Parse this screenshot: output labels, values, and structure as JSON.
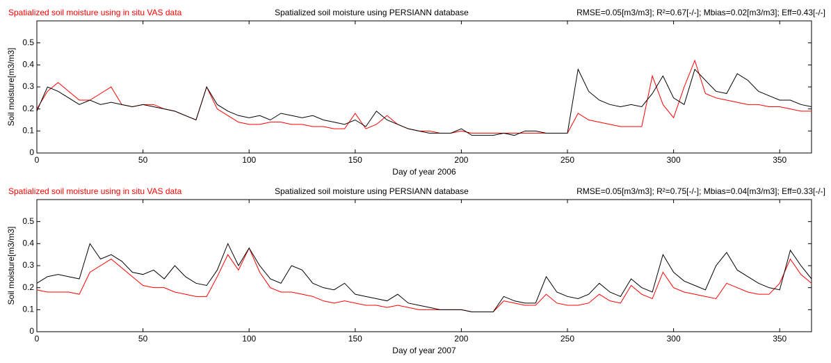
{
  "chart_data": [
    {
      "type": "line",
      "annotation": "RMSE=0.05[m3/m3]; R²=0.67[-/-]; Mbias=0.02[m3/m3]; Eff=0.43[-/-]",
      "x_label": "Day of year 2006",
      "y_label": "Soil moisture[m3/m3]",
      "xlim": [
        0,
        365
      ],
      "xticks": [
        0,
        50,
        100,
        150,
        200,
        250,
        300,
        350
      ],
      "ylim": [
        0,
        0.6
      ],
      "yticks": [
        0,
        0.1,
        0.2,
        0.3,
        0.4,
        0.5
      ],
      "x": [
        0,
        5,
        10,
        15,
        20,
        25,
        30,
        35,
        40,
        45,
        50,
        55,
        60,
        65,
        70,
        75,
        80,
        85,
        90,
        95,
        100,
        105,
        110,
        115,
        120,
        125,
        130,
        135,
        140,
        145,
        150,
        155,
        160,
        165,
        170,
        175,
        180,
        185,
        190,
        195,
        200,
        205,
        210,
        215,
        220,
        225,
        230,
        235,
        240,
        245,
        250,
        255,
        260,
        265,
        270,
        275,
        280,
        285,
        290,
        295,
        300,
        305,
        310,
        315,
        320,
        325,
        330,
        335,
        340,
        345,
        350,
        355,
        360,
        365
      ],
      "series": [
        {
          "name": "Spatialized soil moisture using in situ VAS data",
          "color": "#ff0000",
          "values": [
            0.2,
            0.28,
            0.32,
            0.28,
            0.24,
            0.24,
            0.27,
            0.3,
            0.22,
            0.21,
            0.22,
            0.22,
            0.2,
            0.19,
            0.17,
            0.15,
            0.3,
            0.2,
            0.17,
            0.14,
            0.13,
            0.13,
            0.14,
            0.14,
            0.13,
            0.13,
            0.12,
            0.12,
            0.11,
            0.11,
            0.18,
            0.11,
            0.13,
            0.17,
            0.13,
            0.11,
            0.1,
            0.1,
            0.09,
            0.09,
            0.1,
            0.09,
            0.09,
            0.09,
            0.09,
            0.09,
            0.09,
            0.09,
            0.09,
            0.09,
            0.09,
            0.18,
            0.15,
            0.14,
            0.13,
            0.12,
            0.12,
            0.12,
            0.35,
            0.22,
            0.16,
            0.3,
            0.42,
            0.27,
            0.25,
            0.24,
            0.23,
            0.22,
            0.22,
            0.21,
            0.21,
            0.2,
            0.19,
            0.19
          ]
        },
        {
          "name": "Spatialized soil moisture using PERSIANN database",
          "color": "#000000",
          "values": [
            0.19,
            0.3,
            0.28,
            0.25,
            0.22,
            0.24,
            0.22,
            0.23,
            0.22,
            0.21,
            0.22,
            0.21,
            0.2,
            0.19,
            0.17,
            0.15,
            0.3,
            0.22,
            0.19,
            0.17,
            0.16,
            0.17,
            0.15,
            0.18,
            0.17,
            0.16,
            0.17,
            0.15,
            0.14,
            0.13,
            0.15,
            0.12,
            0.19,
            0.15,
            0.13,
            0.11,
            0.1,
            0.09,
            0.09,
            0.09,
            0.11,
            0.08,
            0.08,
            0.08,
            0.09,
            0.08,
            0.1,
            0.1,
            0.09,
            0.09,
            0.09,
            0.38,
            0.28,
            0.24,
            0.22,
            0.21,
            0.22,
            0.21,
            0.27,
            0.35,
            0.25,
            0.22,
            0.38,
            0.33,
            0.28,
            0.27,
            0.36,
            0.33,
            0.28,
            0.26,
            0.24,
            0.24,
            0.22,
            0.21
          ]
        }
      ]
    },
    {
      "type": "line",
      "annotation": "RMSE=0.05[m3/m3]; R²=0.75[-/-]; Mbias=0.04[m3/m3]; Eff=0.33[-/-]",
      "x_label": "Day of year 2007",
      "y_label": "Soil moisture[m3/m3]",
      "xlim": [
        0,
        365
      ],
      "xticks": [
        0,
        50,
        100,
        150,
        200,
        250,
        300,
        350
      ],
      "ylim": [
        0,
        0.6
      ],
      "yticks": [
        0,
        0.1,
        0.2,
        0.3,
        0.4,
        0.5
      ],
      "x": [
        0,
        5,
        10,
        15,
        20,
        25,
        30,
        35,
        40,
        45,
        50,
        55,
        60,
        65,
        70,
        75,
        80,
        85,
        90,
        95,
        100,
        105,
        110,
        115,
        120,
        125,
        130,
        135,
        140,
        145,
        150,
        155,
        160,
        165,
        170,
        175,
        180,
        185,
        190,
        195,
        200,
        205,
        210,
        215,
        220,
        225,
        230,
        235,
        240,
        245,
        250,
        255,
        260,
        265,
        270,
        275,
        280,
        285,
        290,
        295,
        300,
        305,
        310,
        315,
        320,
        325,
        330,
        335,
        340,
        345,
        350,
        355,
        360,
        365
      ],
      "series": [
        {
          "name": "Spatialized soil moisture using in situ VAS data",
          "color": "#ff0000",
          "values": [
            0.19,
            0.18,
            0.18,
            0.18,
            0.17,
            0.27,
            0.3,
            0.33,
            0.29,
            0.25,
            0.21,
            0.2,
            0.2,
            0.18,
            0.17,
            0.16,
            0.16,
            0.25,
            0.35,
            0.28,
            0.38,
            0.27,
            0.2,
            0.18,
            0.18,
            0.17,
            0.16,
            0.14,
            0.13,
            0.14,
            0.13,
            0.12,
            0.12,
            0.11,
            0.12,
            0.11,
            0.1,
            0.1,
            0.1,
            0.1,
            0.1,
            0.09,
            0.09,
            0.09,
            0.14,
            0.13,
            0.12,
            0.12,
            0.17,
            0.13,
            0.12,
            0.12,
            0.13,
            0.17,
            0.14,
            0.13,
            0.21,
            0.17,
            0.15,
            0.27,
            0.2,
            0.18,
            0.17,
            0.16,
            0.15,
            0.22,
            0.2,
            0.18,
            0.17,
            0.17,
            0.22,
            0.33,
            0.26,
            0.22
          ]
        },
        {
          "name": "Spatialized soil moisture using PERSIANN database",
          "color": "#000000",
          "values": [
            0.22,
            0.25,
            0.26,
            0.25,
            0.24,
            0.4,
            0.33,
            0.35,
            0.32,
            0.27,
            0.26,
            0.28,
            0.24,
            0.3,
            0.25,
            0.22,
            0.21,
            0.28,
            0.4,
            0.3,
            0.38,
            0.3,
            0.24,
            0.22,
            0.3,
            0.28,
            0.22,
            0.2,
            0.19,
            0.22,
            0.17,
            0.16,
            0.15,
            0.14,
            0.17,
            0.13,
            0.12,
            0.11,
            0.1,
            0.1,
            0.1,
            0.09,
            0.09,
            0.09,
            0.16,
            0.14,
            0.13,
            0.13,
            0.25,
            0.18,
            0.16,
            0.15,
            0.17,
            0.22,
            0.18,
            0.16,
            0.24,
            0.2,
            0.18,
            0.35,
            0.27,
            0.23,
            0.21,
            0.19,
            0.3,
            0.36,
            0.28,
            0.25,
            0.22,
            0.2,
            0.19,
            0.37,
            0.3,
            0.24
          ]
        }
      ]
    }
  ]
}
